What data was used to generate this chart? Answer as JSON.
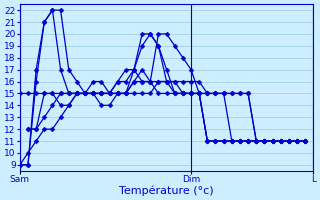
{
  "background_color": "#cceeff",
  "grid_color": "#99ccdd",
  "line_color": "#0000cc",
  "marker": "D",
  "markersize": 2.5,
  "linewidth": 0.9,
  "xlabel": "Température (°c)",
  "xlabel_color": "#0000cc",
  "xlabel_fontsize": 8,
  "tick_color": "#0000cc",
  "tick_fontsize": 6.5,
  "ylim": [
    8.5,
    22.5
  ],
  "yticks": [
    9,
    10,
    11,
    12,
    13,
    14,
    15,
    16,
    17,
    18,
    19,
    20,
    21,
    22
  ],
  "xlim": [
    0,
    36
  ],
  "xtick_labels": [
    "Sam",
    "Dim",
    "L"
  ],
  "xtick_positions": [
    0,
    21,
    36
  ],
  "series": [
    {
      "xs": [
        0,
        1,
        2,
        3,
        4,
        5,
        6,
        7,
        8,
        9,
        10,
        11,
        12,
        13,
        14,
        15,
        16,
        17,
        18,
        19,
        20,
        21,
        22,
        23,
        24,
        25,
        26,
        27,
        28,
        29,
        30,
        31,
        32,
        33,
        34,
        35
      ],
      "ys": [
        9,
        9,
        16,
        21,
        22,
        22,
        17,
        16,
        15,
        15,
        15,
        15,
        16,
        17,
        17,
        16,
        16,
        20,
        20,
        19,
        18,
        17,
        15,
        15,
        15,
        15,
        11,
        11,
        11,
        11,
        11,
        11,
        11,
        11,
        11,
        11
      ]
    },
    {
      "xs": [
        0,
        1,
        2,
        3,
        4,
        5,
        6,
        7,
        8,
        9,
        10,
        11,
        12,
        13,
        14,
        15,
        16,
        17,
        18,
        19,
        20,
        21,
        22,
        23,
        24,
        25,
        26,
        27,
        28,
        29,
        30,
        31,
        32,
        33,
        34,
        35
      ],
      "ys": [
        9,
        9,
        17,
        21,
        22,
        17,
        15,
        15,
        15,
        15,
        14,
        14,
        15,
        15,
        16,
        17,
        16,
        15,
        15,
        15,
        15,
        15,
        15,
        11,
        11,
        11,
        11,
        11,
        11,
        11,
        11,
        11,
        11,
        11,
        11,
        11
      ]
    },
    {
      "xs": [
        1,
        2,
        3,
        4,
        5,
        6,
        7,
        8,
        9,
        10,
        11,
        12,
        13,
        14,
        15,
        16,
        17,
        18,
        19,
        20,
        21,
        22,
        23,
        24,
        25,
        26,
        27,
        28,
        29,
        30,
        31,
        32,
        33,
        34,
        35
      ],
      "ys": [
        12,
        12,
        15,
        15,
        14,
        14,
        15,
        15,
        16,
        16,
        15,
        15,
        15,
        17,
        20,
        20,
        19,
        16,
        15,
        15,
        15,
        15,
        11,
        11,
        11,
        11,
        11,
        11,
        11,
        11,
        11,
        11,
        11,
        11,
        11
      ]
    },
    {
      "xs": [
        1,
        2,
        3,
        4,
        5,
        6,
        7,
        8,
        9,
        10,
        11,
        12,
        13,
        14,
        15,
        16,
        17,
        18,
        19,
        20,
        21,
        22,
        23,
        24,
        25,
        26,
        27,
        28,
        29,
        30,
        31,
        32,
        33,
        34,
        35
      ],
      "ys": [
        12,
        12,
        13,
        14,
        15,
        15,
        15,
        15,
        15,
        15,
        15,
        16,
        16,
        17,
        19,
        20,
        19,
        17,
        15,
        15,
        15,
        15,
        11,
        11,
        11,
        11,
        11,
        11,
        11,
        11,
        11,
        11,
        11,
        11,
        11
      ]
    },
    {
      "xs": [
        0,
        1,
        2,
        3,
        4,
        5,
        6,
        7,
        8,
        9,
        10,
        11,
        12,
        13,
        14,
        15,
        16,
        17,
        18,
        19,
        20,
        21,
        22,
        23,
        24,
        25,
        26,
        27,
        28,
        29,
        30,
        31,
        32,
        33,
        34,
        35
      ],
      "ys": [
        15,
        15,
        15,
        15,
        15,
        15,
        15,
        15,
        15,
        15,
        15,
        15,
        15,
        15,
        16,
        16,
        16,
        16,
        16,
        16,
        16,
        16,
        16,
        15,
        15,
        15,
        15,
        15,
        15,
        11,
        11,
        11,
        11,
        11,
        11,
        11
      ]
    },
    {
      "xs": [
        0,
        1,
        2,
        3,
        4,
        5,
        6,
        7,
        8,
        9,
        10,
        11,
        12,
        13,
        14,
        15,
        16,
        17,
        18,
        19,
        20,
        21,
        22,
        23,
        24,
        25,
        26,
        27,
        28,
        29,
        30,
        31,
        32,
        33,
        34,
        35
      ],
      "ys": [
        9,
        10,
        11,
        12,
        12,
        13,
        14,
        15,
        15,
        15,
        15,
        15,
        15,
        15,
        15,
        15,
        15,
        16,
        16,
        16,
        15,
        15,
        15,
        15,
        15,
        15,
        15,
        15,
        15,
        11,
        11,
        11,
        11,
        11,
        11,
        11
      ]
    }
  ]
}
